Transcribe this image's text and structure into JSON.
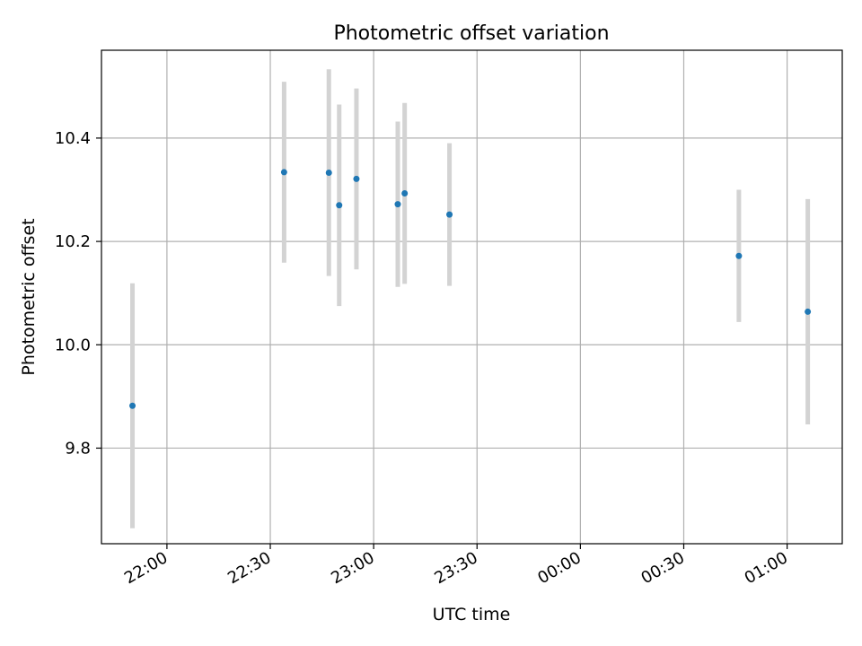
{
  "chart_data": {
    "type": "scatter",
    "title": "Photometric offset variation",
    "xlabel": "UTC time",
    "ylabel": "Photometric offset",
    "x_ticks": [
      "22:00",
      "22:30",
      "23:00",
      "23:30",
      "00:00",
      "00:30",
      "01:00"
    ],
    "x_tick_minutes": [
      120,
      150,
      180,
      210,
      240,
      270,
      300
    ],
    "y_ticks": [
      "9.8",
      "10.0",
      "10.2",
      "10.4"
    ],
    "y_tick_values": [
      9.8,
      10.0,
      10.2,
      10.4
    ],
    "xlim_minutes": [
      101,
      316
    ],
    "ylim": [
      9.615,
      10.57
    ],
    "grid": true,
    "marker_color": "#1f77b4",
    "errorbar_color": "#d3d3d3",
    "series": [
      {
        "points": [
          {
            "x": "21:50",
            "y": 9.882,
            "err": 0.237
          },
          {
            "x": "22:34",
            "y": 10.334,
            "err": 0.175
          },
          {
            "x": "22:47",
            "y": 10.333,
            "err": 0.2
          },
          {
            "x": "22:50",
            "y": 10.27,
            "err": 0.195
          },
          {
            "x": "22:55",
            "y": 10.321,
            "err": 0.175
          },
          {
            "x": "23:07",
            "y": 10.272,
            "err": 0.16
          },
          {
            "x": "23:09",
            "y": 10.293,
            "err": 0.175
          },
          {
            "x": "23:22",
            "y": 10.252,
            "err": 0.138
          },
          {
            "x": "00:46",
            "y": 10.172,
            "err": 0.128
          },
          {
            "x": "01:06",
            "y": 10.064,
            "err": 0.218
          }
        ]
      }
    ]
  }
}
